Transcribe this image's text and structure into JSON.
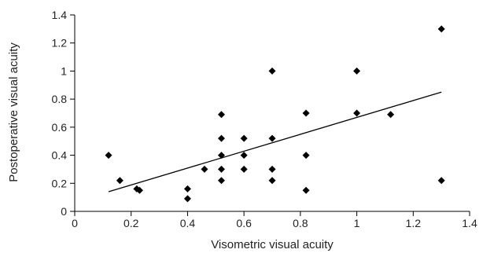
{
  "chart_data": {
    "type": "scatter",
    "title": "",
    "xlabel": "Visometric visual acuity",
    "ylabel": "Postoperative visual acuity",
    "xlim": [
      0,
      1.4
    ],
    "ylim": [
      0,
      1.4
    ],
    "xticks": [
      "0",
      "0.2",
      "0.4",
      "0.6",
      "0.8",
      "1",
      "1.2",
      "1.4"
    ],
    "yticks": [
      "0",
      "0.2",
      "0.4",
      "0.6",
      "0.8",
      "1",
      "1.2",
      "1.4"
    ],
    "grid": false,
    "legend": "none",
    "marker_color": "#000000",
    "series": [
      {
        "marker": "diamond",
        "points": [
          [
            0.12,
            0.4
          ],
          [
            0.16,
            0.22
          ],
          [
            0.22,
            0.16
          ],
          [
            0.23,
            0.15
          ],
          [
            0.4,
            0.16
          ],
          [
            0.4,
            0.09
          ],
          [
            0.46,
            0.3
          ],
          [
            0.52,
            0.69
          ],
          [
            0.52,
            0.52
          ],
          [
            0.52,
            0.4
          ],
          [
            0.52,
            0.3
          ],
          [
            0.52,
            0.22
          ],
          [
            0.6,
            0.52
          ],
          [
            0.6,
            0.4
          ],
          [
            0.6,
            0.3
          ],
          [
            0.7,
            1.0
          ],
          [
            0.7,
            0.52
          ],
          [
            0.7,
            0.3
          ],
          [
            0.7,
            0.22
          ],
          [
            0.82,
            0.7
          ],
          [
            0.82,
            0.4
          ],
          [
            0.82,
            0.15
          ],
          [
            1.0,
            1.0
          ],
          [
            1.0,
            0.7
          ],
          [
            1.12,
            0.69
          ],
          [
            1.3,
            1.3
          ],
          [
            1.3,
            0.22
          ]
        ]
      }
    ],
    "trendline": {
      "x": [
        0.12,
        1.3
      ],
      "y": [
        0.14,
        0.85
      ]
    }
  }
}
